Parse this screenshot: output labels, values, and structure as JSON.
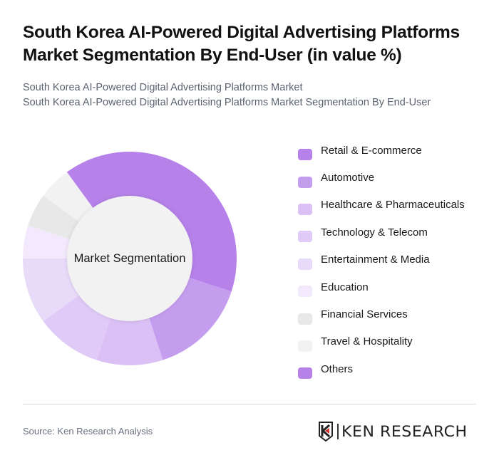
{
  "header": {
    "title": "South Korea AI-Powered Digital Advertising Platforms Market Segmentation By End-User (in value %)",
    "subtitle_line1": "South Korea AI-Powered Digital Advertising Platforms Market",
    "subtitle_line2": "South Korea AI-Powered Digital Advertising Platforms Market Segmentation By End-User"
  },
  "chart": {
    "center_label": "Market Segmentation"
  },
  "legend": {
    "items": [
      {
        "label": "Retail & E-commerce",
        "color": "#B682EA"
      },
      {
        "label": "Automotive",
        "color": "#C59DEE"
      },
      {
        "label": "Healthcare & Pharmaceuticals",
        "color": "#DAC0F5"
      },
      {
        "label": "Technology & Telecom",
        "color": "#E0CAF7"
      },
      {
        "label": "Entertainment & Media",
        "color": "#E8DAF9"
      },
      {
        "label": "Education",
        "color": "#F2EAFC"
      },
      {
        "label": "Financial Services",
        "color": "#E8E8E8"
      },
      {
        "label": "Travel & Hospitality",
        "color": "#F2F2F2"
      },
      {
        "label": "Others",
        "color": "#B682EA"
      }
    ]
  },
  "footer": {
    "source": "Source: Ken Research Analysis",
    "logo_text": "KEN RESEARCH"
  },
  "chart_data": {
    "type": "pie",
    "variant": "donut",
    "title": "South Korea AI-Powered Digital Advertising Platforms Market Segmentation By End-User (in value %)",
    "center_label": "Market Segmentation",
    "categories": [
      "Retail & E-commerce",
      "Automotive",
      "Healthcare & Pharmaceuticals",
      "Technology & Telecom",
      "Entertainment & Media",
      "Education",
      "Financial Services",
      "Travel & Hospitality",
      "Others"
    ],
    "values": [
      40,
      15,
      10,
      10,
      10,
      5,
      5,
      5,
      0
    ],
    "colors": [
      "#B682EA",
      "#C59DEE",
      "#DAC0F5",
      "#E0CAF7",
      "#E8DAF9",
      "#F2EAFC",
      "#E8E8E8",
      "#F2F2F2",
      "#B682EA"
    ],
    "start_angle_deg": 324,
    "unit": "%",
    "legend_position": "right"
  }
}
